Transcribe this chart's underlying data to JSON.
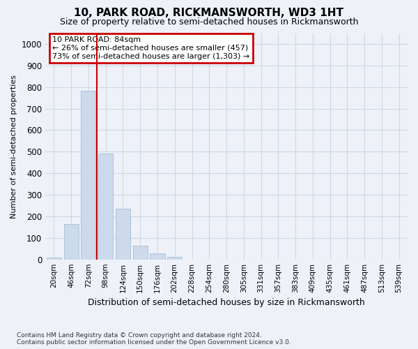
{
  "title": "10, PARK ROAD, RICKMANSWORTH, WD3 1HT",
  "subtitle": "Size of property relative to semi-detached houses in Rickmansworth",
  "xlabel": "Distribution of semi-detached houses by size in Rickmansworth",
  "ylabel": "Number of semi-detached properties",
  "categories": [
    "20sqm",
    "46sqm",
    "72sqm",
    "98sqm",
    "124sqm",
    "150sqm",
    "176sqm",
    "202sqm",
    "228sqm",
    "254sqm",
    "280sqm",
    "305sqm",
    "331sqm",
    "357sqm",
    "383sqm",
    "409sqm",
    "435sqm",
    "461sqm",
    "487sqm",
    "513sqm",
    "539sqm"
  ],
  "values": [
    10,
    163,
    782,
    490,
    235,
    63,
    28,
    13,
    0,
    0,
    0,
    0,
    0,
    0,
    0,
    0,
    0,
    0,
    0,
    0,
    0
  ],
  "bar_color": "#ccdaeb",
  "bar_edge_color": "#a8bdd4",
  "vline_x_index": 2,
  "vline_color": "#cc0000",
  "annotation_text": "10 PARK ROAD: 84sqm\n← 26% of semi-detached houses are smaller (457)\n73% of semi-detached houses are larger (1,303) →",
  "annotation_box_color": "#ffffff",
  "annotation_box_edge": "#cc0000",
  "ylim": [
    0,
    1050
  ],
  "yticks": [
    0,
    100,
    200,
    300,
    400,
    500,
    600,
    700,
    800,
    900,
    1000
  ],
  "footer": "Contains HM Land Registry data © Crown copyright and database right 2024.\nContains public sector information licensed under the Open Government Licence v3.0.",
  "grid_color": "#ccd8e4",
  "background_color": "#eef2f8",
  "title_fontsize": 11,
  "subtitle_fontsize": 9
}
